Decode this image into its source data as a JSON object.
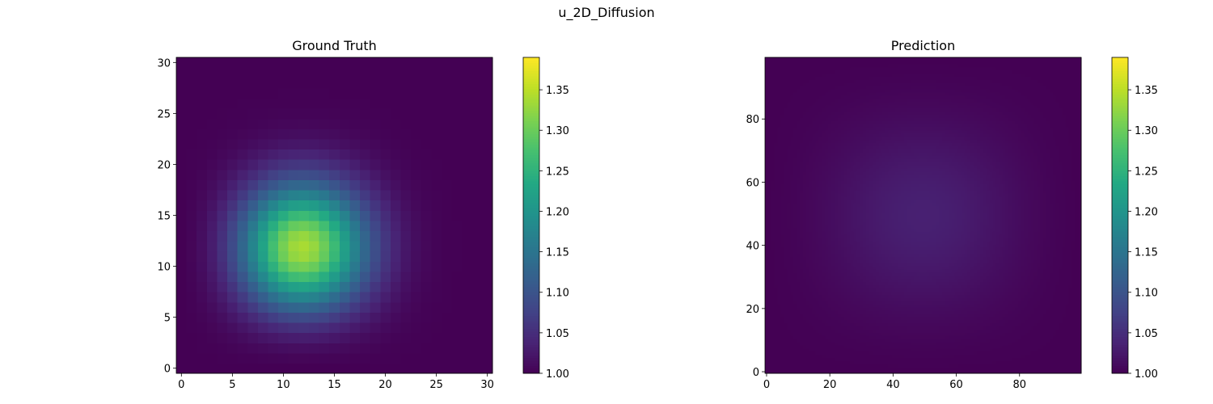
{
  "figure_title": "u_2D_Diffusion",
  "colormap": [
    "#440154",
    "#482475",
    "#414487",
    "#355f8d",
    "#2a788e",
    "#21918c",
    "#22a884",
    "#44bf70",
    "#7ad151",
    "#bddf26",
    "#fde725"
  ],
  "chart_data": [
    {
      "type": "heatmap",
      "title": "Ground Truth",
      "xlabel": "",
      "ylabel": "",
      "grid": false,
      "xlim": [
        -0.5,
        30.5
      ],
      "ylim": [
        -0.5,
        30.5
      ],
      "xticks": [
        0,
        5,
        10,
        15,
        20,
        25,
        30
      ],
      "yticks": [
        0,
        5,
        10,
        15,
        20,
        25,
        30
      ],
      "resolution": [
        31,
        31
      ],
      "field": {
        "form": "gaussian_bump_zero_boundary",
        "peak_value": 1.39,
        "peak_center": [
          11,
          11
        ],
        "sigma": [
          5,
          5
        ],
        "boundary_value": 1.0,
        "domain_max": 30
      },
      "colorbar": {
        "min": 1.0,
        "max": 1.39,
        "ticks": [
          1.0,
          1.05,
          1.1,
          1.15,
          1.2,
          1.25,
          1.3,
          1.35
        ]
      }
    },
    {
      "type": "heatmap",
      "title": "Prediction",
      "xlabel": "",
      "ylabel": "",
      "grid": false,
      "xlim": [
        -0.5,
        99.5
      ],
      "ylim": [
        -0.5,
        99.5
      ],
      "xticks": [
        0,
        20,
        40,
        60,
        80
      ],
      "yticks": [
        0,
        20,
        40,
        60,
        80
      ],
      "resolution": [
        100,
        100
      ],
      "field": {
        "form": "gaussian_bump_zero_boundary",
        "peak_value": 1.035,
        "peak_center": [
          49.5,
          49.5
        ],
        "sigma": [
          30,
          30
        ],
        "boundary_value": 1.0,
        "domain_max": 99
      },
      "colorbar": {
        "min": 1.0,
        "max": 1.39,
        "ticks": [
          1.0,
          1.05,
          1.1,
          1.15,
          1.2,
          1.25,
          1.3,
          1.35
        ]
      }
    }
  ]
}
